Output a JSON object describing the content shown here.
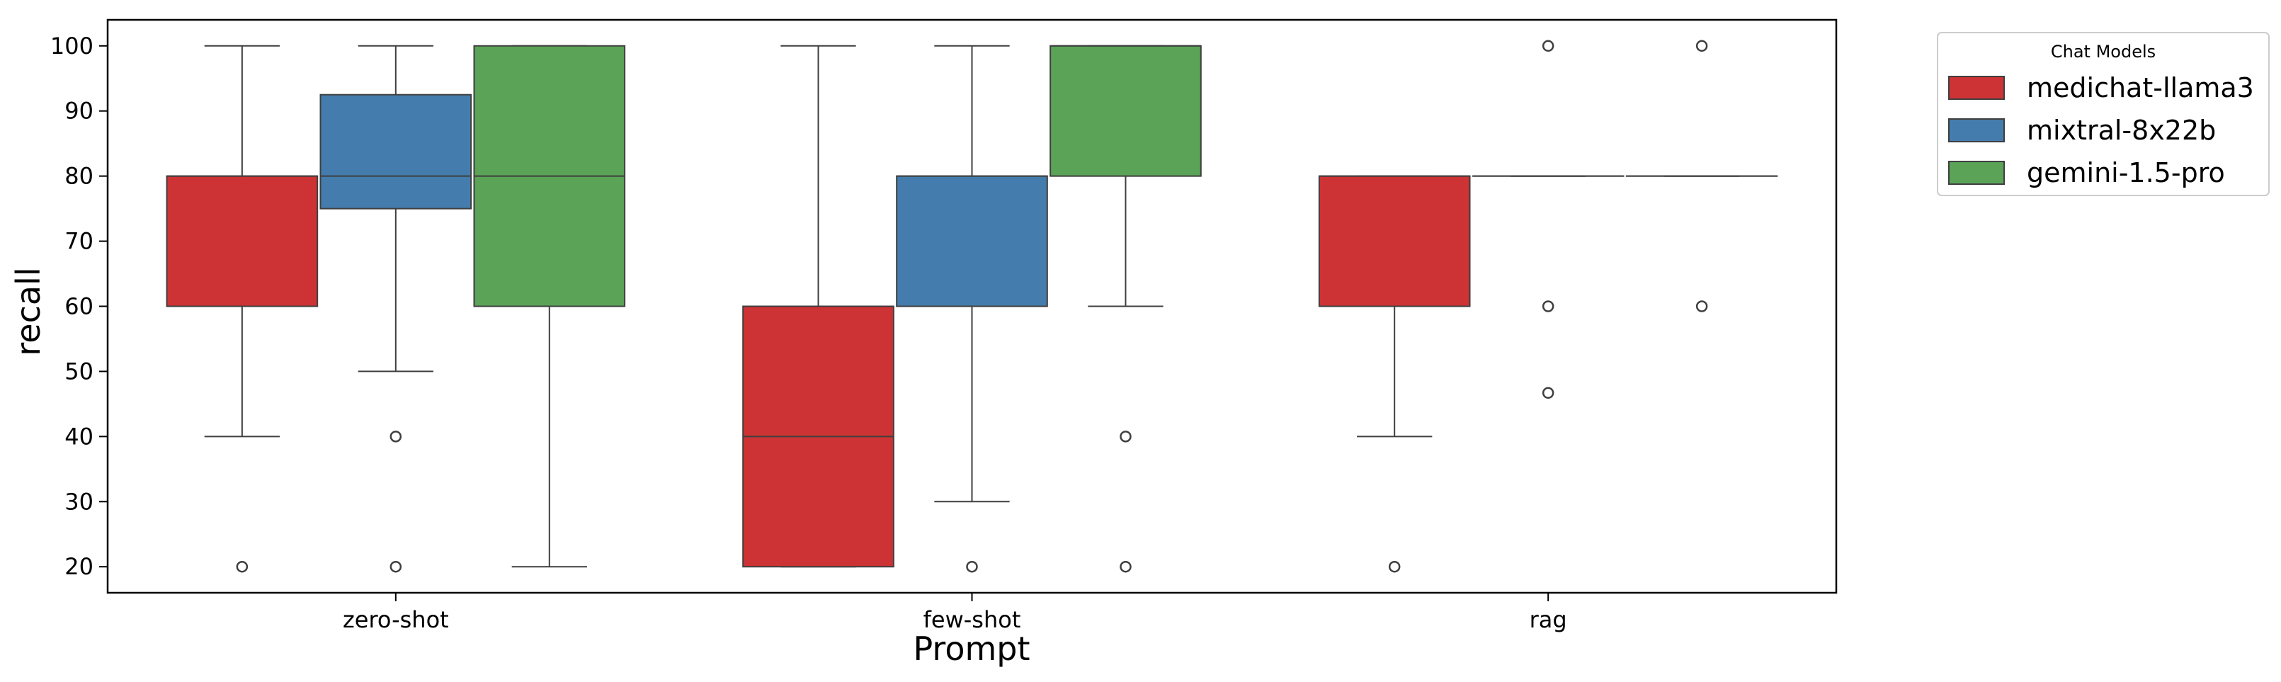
{
  "chart_data": {
    "type": "box",
    "xlabel": "Prompt",
    "ylabel": "recall",
    "ylim": [
      16,
      104
    ],
    "yticks": [
      20,
      30,
      40,
      50,
      60,
      70,
      80,
      90,
      100
    ],
    "categories": [
      "zero-shot",
      "few-shot",
      "rag"
    ],
    "legend": {
      "title": "Chat Models",
      "placement": "outside-top-right"
    },
    "grid": false,
    "series": [
      {
        "name": "medichat-llama3",
        "color": "#cd3334",
        "boxes": [
          {
            "category": "zero-shot",
            "whisker_low": 40,
            "q1": 60,
            "median": 80,
            "q3": 80,
            "whisker_high": 100,
            "outliers": [
              20
            ]
          },
          {
            "category": "few-shot",
            "whisker_low": 20,
            "q1": 20,
            "median": 40,
            "q3": 60,
            "whisker_high": 100,
            "outliers": []
          },
          {
            "category": "rag",
            "whisker_low": 40,
            "q1": 60,
            "median": 80,
            "q3": 80,
            "whisker_high": 80,
            "outliers": [
              20
            ]
          }
        ]
      },
      {
        "name": "mixtral-8x22b",
        "color": "#447dad",
        "boxes": [
          {
            "category": "zero-shot",
            "whisker_low": 50,
            "q1": 75,
            "median": 80,
            "q3": 92.5,
            "whisker_high": 100,
            "outliers": [
              40,
              20
            ]
          },
          {
            "category": "few-shot",
            "whisker_low": 30,
            "q1": 60,
            "median": 80,
            "q3": 80,
            "whisker_high": 100,
            "outliers": [
              20
            ]
          },
          {
            "category": "rag",
            "whisker_low": 80,
            "q1": 80,
            "median": 80,
            "q3": 80,
            "whisker_high": 80,
            "outliers": [
              100,
              60,
              46.7
            ]
          }
        ]
      },
      {
        "name": "gemini-1.5-pro",
        "color": "#5aa357",
        "boxes": [
          {
            "category": "zero-shot",
            "whisker_low": 20,
            "q1": 60,
            "median": 80,
            "q3": 100,
            "whisker_high": 100,
            "outliers": []
          },
          {
            "category": "few-shot",
            "whisker_low": 60,
            "q1": 80,
            "median": 100,
            "q3": 100,
            "whisker_high": 100,
            "outliers": [
              40,
              20
            ]
          },
          {
            "category": "rag",
            "whisker_low": 80,
            "q1": 80,
            "median": 80,
            "q3": 80,
            "whisker_high": 80,
            "outliers": [
              100,
              60
            ]
          }
        ]
      }
    ]
  }
}
